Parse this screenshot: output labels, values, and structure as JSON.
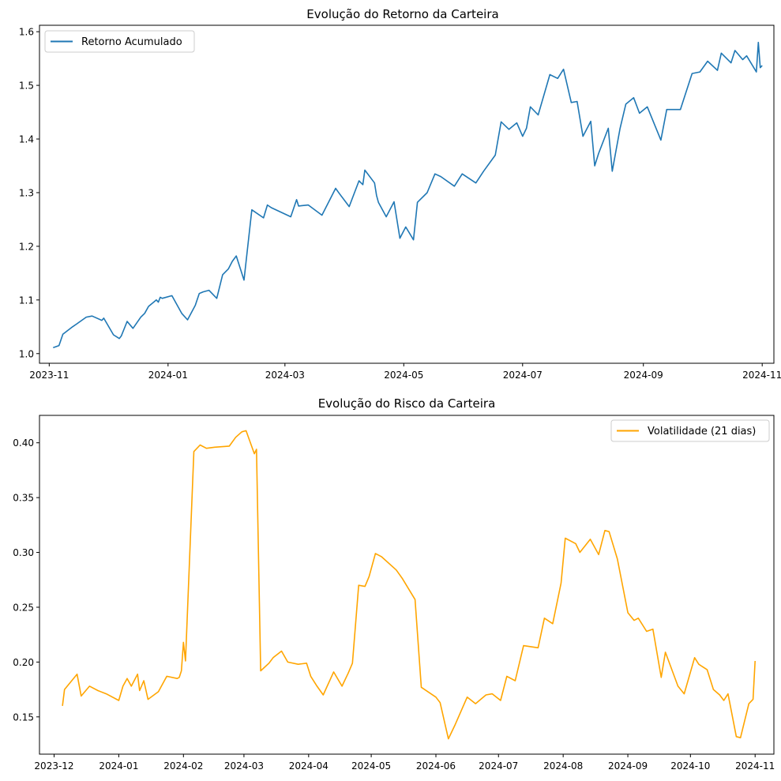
{
  "colors": {
    "return_line": "#1f77b4",
    "risk_line": "#ffa500",
    "axes": "#000000",
    "background": "#ffffff",
    "legend_border": "#cccccc"
  },
  "chart_data": [
    {
      "type": "line",
      "title": "Evolução do Retorno da Carteira",
      "xlabel": "",
      "ylabel": "",
      "grid": false,
      "legend_position": "top-left",
      "xlim": [
        "2023-10-27",
        "2024-11-07"
      ],
      "ylim": [
        0.982,
        1.612
      ],
      "x_ticks": [
        "2023-11-01",
        "2024-01-01",
        "2024-03-01",
        "2024-05-01",
        "2024-07-01",
        "2024-09-01",
        "2024-11-01"
      ],
      "x_tick_labels": [
        "2023-11",
        "2024-01",
        "2024-03",
        "2024-05",
        "2024-07",
        "2024-09",
        "2024-11"
      ],
      "y_ticks": [
        1.0,
        1.1,
        1.2,
        1.3,
        1.4,
        1.5,
        1.6
      ],
      "y_tick_labels": [
        "1.0",
        "1.1",
        "1.2",
        "1.3",
        "1.4",
        "1.5",
        "1.6"
      ],
      "series": [
        {
          "name": "Retorno Acumulado",
          "x": [
            "2023-11-03",
            "2023-11-06",
            "2023-11-08",
            "2023-11-13",
            "2023-11-15",
            "2023-11-20",
            "2023-11-23",
            "2023-11-28",
            "2023-11-29",
            "2023-12-04",
            "2023-12-07",
            "2023-12-08",
            "2023-12-11",
            "2023-12-14",
            "2023-12-18",
            "2023-12-20",
            "2023-12-22",
            "2023-12-26",
            "2023-12-27",
            "2023-12-28",
            "2023-12-29",
            "2024-01-03",
            "2024-01-08",
            "2024-01-11",
            "2024-01-15",
            "2024-01-17",
            "2024-01-19",
            "2024-01-22",
            "2024-01-26",
            "2024-01-29",
            "2024-02-01",
            "2024-02-03",
            "2024-02-05",
            "2024-02-09",
            "2024-02-13",
            "2024-02-19",
            "2024-02-21",
            "2024-02-23",
            "2024-03-04",
            "2024-03-07",
            "2024-03-08",
            "2024-03-13",
            "2024-03-20",
            "2024-03-27",
            "2024-03-29",
            "2024-04-03",
            "2024-04-08",
            "2024-04-10",
            "2024-04-11",
            "2024-04-16",
            "2024-04-17",
            "2024-04-18",
            "2024-04-22",
            "2024-04-26",
            "2024-04-29",
            "2024-05-02",
            "2024-05-06",
            "2024-05-08",
            "2024-05-13",
            "2024-05-17",
            "2024-05-20",
            "2024-05-27",
            "2024-05-31",
            "2024-06-07",
            "2024-06-11",
            "2024-06-17",
            "2024-06-20",
            "2024-06-24",
            "2024-06-28",
            "2024-07-01",
            "2024-07-03",
            "2024-07-05",
            "2024-07-09",
            "2024-07-15",
            "2024-07-19",
            "2024-07-22",
            "2024-07-26",
            "2024-07-29",
            "2024-08-01",
            "2024-08-05",
            "2024-08-07",
            "2024-08-09",
            "2024-08-14",
            "2024-08-16",
            "2024-08-20",
            "2024-08-23",
            "2024-08-27",
            "2024-08-30",
            "2024-09-03",
            "2024-09-10",
            "2024-09-13",
            "2024-09-20",
            "2024-09-26",
            "2024-09-30",
            "2024-10-04",
            "2024-10-09",
            "2024-10-11",
            "2024-10-16",
            "2024-10-18",
            "2024-10-22",
            "2024-10-24",
            "2024-10-29",
            "2024-10-30",
            "2024-10-31",
            "2024-11-01"
          ],
          "values": [
            1.011,
            1.015,
            1.036,
            1.05,
            1.055,
            1.068,
            1.07,
            1.062,
            1.066,
            1.035,
            1.028,
            1.033,
            1.06,
            1.047,
            1.068,
            1.075,
            1.088,
            1.1,
            1.096,
            1.105,
            1.103,
            1.108,
            1.075,
            1.063,
            1.09,
            1.112,
            1.115,
            1.118,
            1.103,
            1.147,
            1.158,
            1.172,
            1.182,
            1.137,
            1.268,
            1.253,
            1.277,
            1.272,
            1.255,
            1.287,
            1.275,
            1.277,
            1.258,
            1.308,
            1.298,
            1.274,
            1.322,
            1.315,
            1.342,
            1.318,
            1.295,
            1.282,
            1.255,
            1.283,
            1.215,
            1.236,
            1.212,
            1.282,
            1.3,
            1.335,
            1.33,
            1.312,
            1.335,
            1.318,
            1.34,
            1.37,
            1.432,
            1.418,
            1.43,
            1.405,
            1.42,
            1.46,
            1.445,
            1.52,
            1.513,
            1.53,
            1.468,
            1.47,
            1.405,
            1.433,
            1.35,
            1.373,
            1.42,
            1.34,
            1.419,
            1.465,
            1.477,
            1.448,
            1.46,
            1.398,
            1.455,
            1.455,
            1.522,
            1.525,
            1.545,
            1.528,
            1.56,
            1.542,
            1.565,
            1.548,
            1.555,
            1.525,
            1.58,
            1.533,
            1.537
          ]
        }
      ]
    },
    {
      "type": "line",
      "title": "Evolução do Risco da Carteira",
      "xlabel": "",
      "ylabel": "",
      "grid": false,
      "legend_position": "top-right",
      "xlim": [
        "2023-11-24",
        "2024-11-10"
      ],
      "ylim": [
        0.116,
        0.425
      ],
      "x_ticks": [
        "2023-12-01",
        "2024-01-01",
        "2024-02-01",
        "2024-03-01",
        "2024-04-01",
        "2024-05-01",
        "2024-06-01",
        "2024-07-01",
        "2024-08-01",
        "2024-09-01",
        "2024-10-01",
        "2024-11-01"
      ],
      "x_tick_labels": [
        "2023-12",
        "2024-01",
        "2024-02",
        "2024-03",
        "2024-04",
        "2024-05",
        "2024-06",
        "2024-07",
        "2024-08",
        "2024-09",
        "2024-10",
        "2024-11"
      ],
      "y_ticks": [
        0.15,
        0.2,
        0.25,
        0.3,
        0.35,
        0.4
      ],
      "y_tick_labels": [
        "0.15",
        "0.20",
        "0.25",
        "0.30",
        "0.35",
        "0.40"
      ],
      "series": [
        {
          "name": "Volatilidade (21 dias)",
          "x": [
            "2023-12-05",
            "2023-12-06",
            "2023-12-12",
            "2023-12-14",
            "2023-12-18",
            "2023-12-22",
            "2023-12-26",
            "2024-01-01",
            "2024-01-03",
            "2024-01-05",
            "2024-01-07",
            "2024-01-10",
            "2024-01-11",
            "2024-01-13",
            "2024-01-15",
            "2024-01-20",
            "2024-01-24",
            "2024-01-29",
            "2024-01-30",
            "2024-01-31",
            "2024-02-01",
            "2024-02-02",
            "2024-02-06",
            "2024-02-09",
            "2024-02-12",
            "2024-02-16",
            "2024-02-23",
            "2024-02-26",
            "2024-02-29",
            "2024-03-02",
            "2024-03-06",
            "2024-03-07",
            "2024-03-09",
            "2024-03-13",
            "2024-03-15",
            "2024-03-19",
            "2024-03-22",
            "2024-03-27",
            "2024-03-31",
            "2024-04-02",
            "2024-04-05",
            "2024-04-08",
            "2024-04-13",
            "2024-04-17",
            "2024-04-20",
            "2024-04-22",
            "2024-04-25",
            "2024-04-28",
            "2024-04-30",
            "2024-05-03",
            "2024-05-06",
            "2024-05-13",
            "2024-05-16",
            "2024-05-22",
            "2024-05-25",
            "2024-06-01",
            "2024-06-03",
            "2024-06-07",
            "2024-06-10",
            "2024-06-16",
            "2024-06-20",
            "2024-06-25",
            "2024-06-28",
            "2024-07-02",
            "2024-07-05",
            "2024-07-09",
            "2024-07-13",
            "2024-07-20",
            "2024-07-23",
            "2024-07-27",
            "2024-07-31",
            "2024-08-02",
            "2024-08-07",
            "2024-08-09",
            "2024-08-14",
            "2024-08-18",
            "2024-08-21",
            "2024-08-23",
            "2024-08-27",
            "2024-09-01",
            "2024-09-04",
            "2024-09-06",
            "2024-09-10",
            "2024-09-13",
            "2024-09-17",
            "2024-09-19",
            "2024-09-25",
            "2024-09-28",
            "2024-10-03",
            "2024-10-05",
            "2024-10-09",
            "2024-10-12",
            "2024-10-15",
            "2024-10-17",
            "2024-10-19",
            "2024-10-23",
            "2024-10-25",
            "2024-10-29",
            "2024-10-31",
            "2024-11-01"
          ],
          "values": [
            0.16,
            0.175,
            0.189,
            0.169,
            0.178,
            0.174,
            0.171,
            0.165,
            0.178,
            0.185,
            0.178,
            0.189,
            0.174,
            0.183,
            0.166,
            0.173,
            0.187,
            0.185,
            0.186,
            0.192,
            0.218,
            0.201,
            0.392,
            0.398,
            0.395,
            0.396,
            0.397,
            0.405,
            0.41,
            0.411,
            0.39,
            0.394,
            0.192,
            0.199,
            0.204,
            0.21,
            0.2,
            0.198,
            0.199,
            0.187,
            0.178,
            0.17,
            0.191,
            0.178,
            0.19,
            0.199,
            0.27,
            0.269,
            0.278,
            0.299,
            0.296,
            0.284,
            0.276,
            0.257,
            0.177,
            0.168,
            0.163,
            0.13,
            0.142,
            0.168,
            0.162,
            0.17,
            0.171,
            0.165,
            0.187,
            0.183,
            0.215,
            0.213,
            0.24,
            0.235,
            0.272,
            0.313,
            0.308,
            0.3,
            0.312,
            0.298,
            0.32,
            0.319,
            0.294,
            0.245,
            0.238,
            0.24,
            0.228,
            0.23,
            0.186,
            0.209,
            0.178,
            0.171,
            0.204,
            0.198,
            0.193,
            0.175,
            0.17,
            0.165,
            0.171,
            0.132,
            0.131,
            0.162,
            0.166,
            0.201
          ]
        }
      ]
    }
  ]
}
